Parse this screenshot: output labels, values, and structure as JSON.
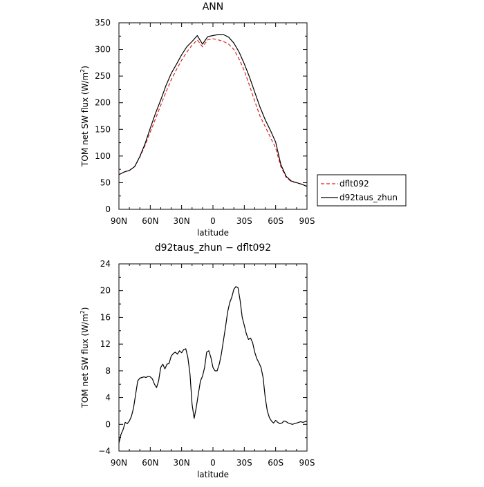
{
  "chart_data": [
    {
      "type": "line",
      "title": "ANN",
      "xlabel": "latitude",
      "ylabel": "TOM net SW flux (W/m²)",
      "ylabel_prefix": "TOM net SW flux (W/m",
      "ylabel_sup": "2",
      "ylabel_suffix": ")",
      "xlim": [
        90,
        -90
      ],
      "ylim": [
        0,
        350
      ],
      "xticks": [
        90,
        60,
        30,
        0,
        -30,
        -60,
        -90
      ],
      "xtick_labels": [
        "90N",
        "60N",
        "30N",
        "0",
        "30S",
        "60S",
        "90S"
      ],
      "yticks": [
        0,
        50,
        100,
        150,
        200,
        250,
        300,
        350
      ],
      "ytick_labels": [
        "0",
        "50",
        "100",
        "150",
        "200",
        "250",
        "300",
        "350"
      ],
      "legend": "right",
      "grid": false,
      "x": [
        90,
        85,
        80,
        75,
        70,
        65,
        60,
        55,
        50,
        45,
        40,
        35,
        30,
        25,
        20,
        15,
        10,
        5,
        0,
        -5,
        -10,
        -15,
        -20,
        -25,
        -30,
        -35,
        -40,
        -45,
        -50,
        -55,
        -60,
        -65,
        -70,
        -75,
        -80,
        -85,
        -90
      ],
      "series": [
        {
          "name": "dflt092",
          "color": "#e02020",
          "dash": "dashed",
          "values": [
            65,
            70,
            73,
            80,
            98,
            120,
            145,
            170,
            195,
            220,
            243,
            262,
            280,
            295,
            308,
            318,
            305,
            318,
            320,
            318,
            315,
            310,
            300,
            282,
            260,
            232,
            203,
            175,
            155,
            135,
            115,
            80,
            60,
            52,
            50,
            47,
            43
          ]
        },
        {
          "name": "d92taus_zhun",
          "color": "#000000",
          "dash": "solid",
          "values": [
            65,
            70,
            73,
            80,
            99,
            123,
            152,
            180,
            205,
            232,
            255,
            272,
            290,
            305,
            315,
            326,
            310,
            324,
            326,
            328,
            328,
            323,
            312,
            295,
            273,
            248,
            220,
            192,
            168,
            148,
            126,
            84,
            62,
            53,
            50,
            47,
            43
          ]
        }
      ]
    },
    {
      "type": "line",
      "title": "d92taus_zhun − dflt092",
      "xlabel": "latitude",
      "ylabel": "TOM net SW flux (W/m²)",
      "ylabel_prefix": "TOM net SW flux (W/m",
      "ylabel_sup": "2",
      "ylabel_suffix": ")",
      "xlim": [
        90,
        -90
      ],
      "ylim": [
        -4,
        24
      ],
      "xticks": [
        90,
        60,
        30,
        0,
        -30,
        -60,
        -90
      ],
      "xtick_labels": [
        "90N",
        "60N",
        "30N",
        "0",
        "30S",
        "60S",
        "90S"
      ],
      "yticks": [
        -4,
        0,
        4,
        8,
        12,
        16,
        20,
        24
      ],
      "ytick_labels": [
        "−4",
        "0",
        "4",
        "8",
        "12",
        "16",
        "20",
        "24"
      ],
      "grid": false,
      "x": [
        90,
        88,
        86,
        84,
        82,
        80,
        78,
        76,
        74,
        72,
        70,
        68,
        66,
        64,
        62,
        60,
        58,
        56,
        54,
        52,
        50,
        48,
        46,
        44,
        42,
        40,
        38,
        36,
        34,
        32,
        30,
        28,
        26,
        24,
        22,
        20,
        18,
        16,
        14,
        12,
        10,
        8,
        6,
        4,
        2,
        0,
        -2,
        -4,
        -6,
        -8,
        -10,
        -12,
        -14,
        -16,
        -18,
        -20,
        -22,
        -24,
        -26,
        -28,
        -30,
        -32,
        -34,
        -36,
        -38,
        -40,
        -42,
        -44,
        -46,
        -48,
        -50,
        -52,
        -54,
        -56,
        -58,
        -60,
        -62,
        -64,
        -66,
        -68,
        -70,
        -72,
        -74,
        -76,
        -78,
        -80,
        -82,
        -84,
        -86,
        -88,
        -90
      ],
      "series": [
        {
          "name": "d92taus_zhun − dflt092",
          "color": "#000000",
          "dash": "solid",
          "values": [
            -2.8,
            -1.5,
            -0.8,
            0.3,
            0.1,
            0.5,
            1.2,
            2.5,
            4.5,
            6.5,
            6.9,
            7.0,
            7.1,
            7.0,
            7.2,
            7.1,
            6.8,
            6.0,
            5.5,
            6.5,
            8.5,
            9.0,
            8.3,
            9.0,
            9.1,
            10.2,
            10.6,
            10.8,
            10.5,
            11.0,
            10.7,
            11.2,
            11.3,
            10.0,
            7.5,
            3.0,
            0.9,
            2.5,
            4.5,
            6.5,
            7.2,
            8.5,
            10.8,
            11.0,
            10.0,
            8.5,
            8.0,
            8.0,
            9.0,
            10.5,
            12.5,
            14.5,
            16.8,
            18.2,
            19.0,
            20.2,
            20.6,
            20.4,
            18.5,
            16.0,
            14.8,
            13.5,
            12.7,
            12.9,
            12.2,
            10.8,
            9.8,
            9.2,
            8.5,
            7.0,
            4.0,
            2.0,
            1.0,
            0.5,
            0.2,
            0.6,
            0.3,
            0.1,
            0.2,
            0.5,
            0.4,
            0.2,
            0.1,
            0.0,
            0.1,
            0.2,
            0.3,
            0.4,
            0.3,
            0.4,
            0.5
          ]
        }
      ]
    }
  ]
}
